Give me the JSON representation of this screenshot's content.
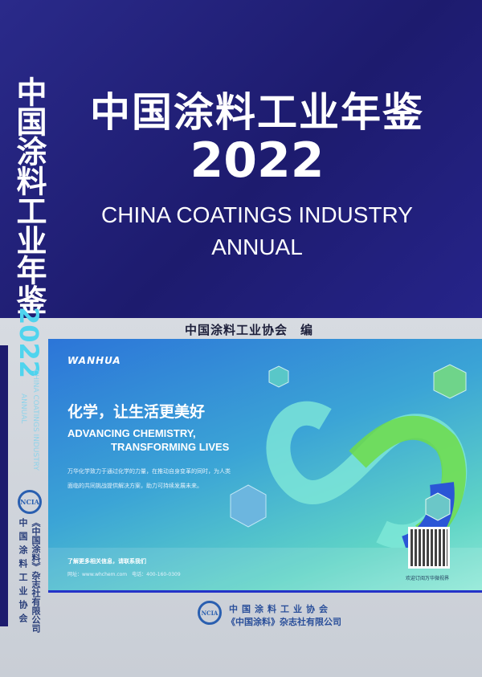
{
  "cover": {
    "title_cn": "中国涂料工业年鉴",
    "year": "2022",
    "title_en_line1": "CHINA COATINGS INDUSTRY",
    "title_en_line2": "ANNUAL",
    "editor": "中国涂料工业协会　编"
  },
  "spine": {
    "title_cn": "中国涂料工业年鉴",
    "year": "2022",
    "title_en_line1": "CHINA COATINGS INDUSTRY",
    "title_en_line2": "ANNUAL",
    "logo": "NCIA",
    "publisher": "《中国涂料》杂志社有限公司",
    "association": "中国涂料工业协会"
  },
  "advert": {
    "brand": "WANHUA",
    "headline": "化学，让生活更美好",
    "slogan_line1": "ADVANCING CHEMISTRY,",
    "slogan_line2": "TRANSFORMING LIVES",
    "body_line1": "万华化学致力于通过化学的力量，在推动自身变革的同时，为人类",
    "body_line2": "面临的共同挑战提供解决方案，助力可持续发展未来。",
    "contact_title": "了解更多相关信息，请联系我们",
    "contact_detail": "网址：www.whchem.com　电话：400-160-0309",
    "qr_caption": "欢迎订阅万华微视界",
    "colors": {
      "blue": "#2c75d8",
      "teal": "#5fd4c6",
      "green": "#6fdc4a"
    }
  },
  "footer": {
    "logo": "NCIA",
    "line1": "中国涂料工业协会",
    "line2": "《中国涂料》杂志社有限公司"
  },
  "colors": {
    "cover_blue": "#1d1b6e",
    "spine_cyan": "#4fd4ee",
    "gray": "#d0d4db"
  }
}
